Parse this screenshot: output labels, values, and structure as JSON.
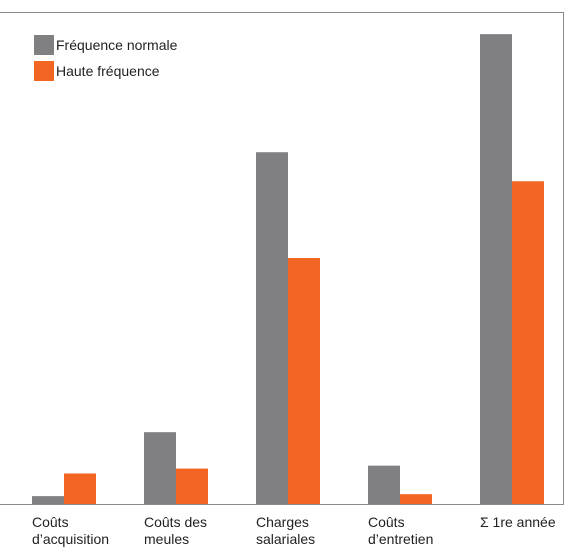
{
  "chart_data": {
    "type": "bar",
    "categories": [
      {
        "line1": "Coûts",
        "line2": "d’acquisition"
      },
      {
        "line1": "Coûts des",
        "line2": "meules"
      },
      {
        "line1": "Charges",
        "line2": "salariales"
      },
      {
        "line1": "Coûts",
        "line2": "d’entretien"
      },
      {
        "line1": "Σ 1re année",
        "line2": ""
      }
    ],
    "series": [
      {
        "name": "Fréquence normale",
        "color": "#808083",
        "values": [
          1.6,
          14.6,
          71.5,
          7.8,
          95.5
        ]
      },
      {
        "name": "Haute fréquence",
        "color": "#f26522",
        "values": [
          6.2,
          7.2,
          50.0,
          2.0,
          65.6
        ]
      }
    ],
    "ylim": [
      0,
      100
    ],
    "grid": false,
    "legend": "top-left"
  }
}
